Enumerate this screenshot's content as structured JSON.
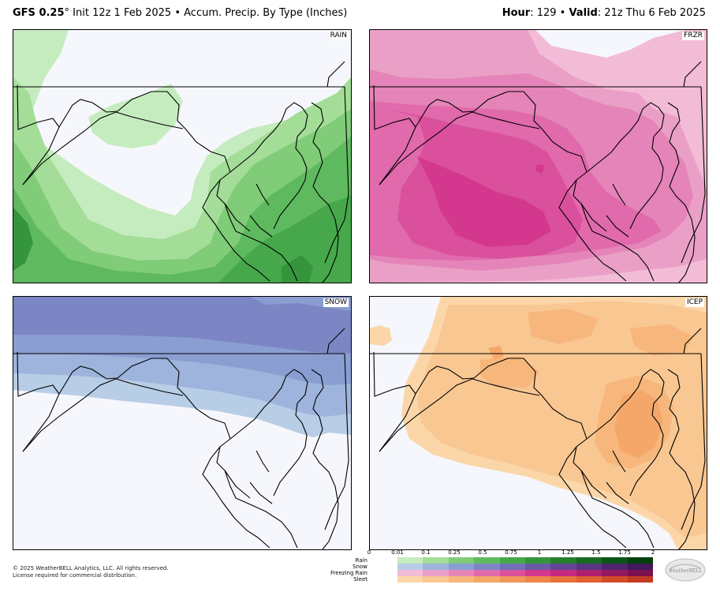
{
  "header": {
    "model": "GFS 0.25",
    "degree": "°",
    "init": " Init 12z 1 Feb 2025",
    "sep": " • ",
    "product": "Accum. Precip. By Type (Inches)",
    "hour_label": "Hour",
    "hour_value": ": 129",
    "valid_label": "Valid",
    "valid_value": ": 21z Thu 6 Feb 2025"
  },
  "panels": {
    "rain": {
      "label": "RAIN"
    },
    "frzr": {
      "label": "FRZR"
    },
    "snow": {
      "label": "SNOW"
    },
    "icep": {
      "label": "ICEP"
    }
  },
  "footer": {
    "copyright": "© 2025 WeatherBELL Analytics, LLC. All rights reserved.",
    "license": "License required for commercial distribution."
  },
  "legend": {
    "ticks": [
      "0",
      "0.01",
      "0.1",
      "0.25",
      "0.5",
      "0.75",
      "1",
      "1.25",
      "1.5",
      "1.75",
      "2"
    ],
    "rows": [
      "Rain",
      "Snow",
      "Freezing Rain",
      "Sleet"
    ],
    "colors": {
      "rain": [
        "#c5ecbe",
        "#a3dd98",
        "#80cc78",
        "#5fba5f",
        "#46a84b",
        "#35953c",
        "#267f2f",
        "#176a22",
        "#0b5516",
        "#04400c"
      ],
      "snow": [
        "#b8cde6",
        "#9fb4dc",
        "#8a9ed2",
        "#7c86c4",
        "#7270b6",
        "#6a5aa6",
        "#634596",
        "#5b3484",
        "#512470",
        "#45185c"
      ],
      "frzr": [
        "#f2bcd6",
        "#eaa0c6",
        "#e584b8",
        "#e06aab",
        "#da509c",
        "#d3388e",
        "#c42a80",
        "#ad2070",
        "#94185f",
        "#7c104f"
      ],
      "icep": [
        "#fbd6a8",
        "#f9c791",
        "#f7b77c",
        "#f5a769",
        "#f29659",
        "#ee8549",
        "#e8733b",
        "#df6030",
        "#d24d27",
        "#c23b20"
      ]
    }
  },
  "brand": {
    "logo_text": "WeatherBELL"
  }
}
